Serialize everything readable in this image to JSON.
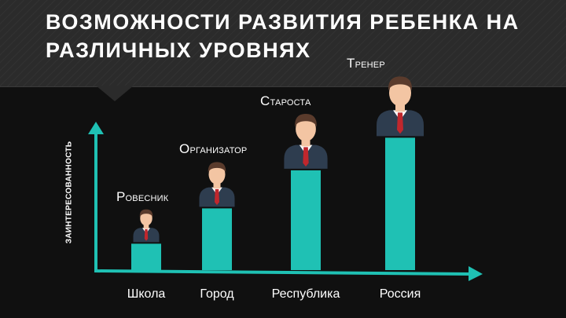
{
  "slide": {
    "title": "ВОЗМОЖНОСТИ РАЗВИТИЯ РЕБЕНКА НА РАЗЛИЧНЫХ УРОВНЯХ",
    "y_axis_label": "ЗАИНТЕРЕСОВАННОСТЬ"
  },
  "colors": {
    "accent": "#1fc1b4",
    "background": "#101010",
    "title_band": "#2b2b2b",
    "suit": "#2e3d4f",
    "skin": "#f3c5a3",
    "hair": "#5a3b2c",
    "tie": "#c0272d"
  },
  "icon": "businessman-avatar-icon",
  "chart_data": {
    "type": "bar",
    "xlabel": "",
    "ylabel": "ЗАИНТЕРЕСОВАННОСТЬ",
    "categories": [
      "Школа",
      "Город",
      "Республика",
      "Россия"
    ],
    "roles": [
      "Ровесник",
      "Организатор",
      "Староста",
      "Тренер"
    ],
    "values": [
      1,
      2.3,
      3.7,
      4.9
    ],
    "ylim": [
      0,
      6.5
    ],
    "grid": false
  }
}
